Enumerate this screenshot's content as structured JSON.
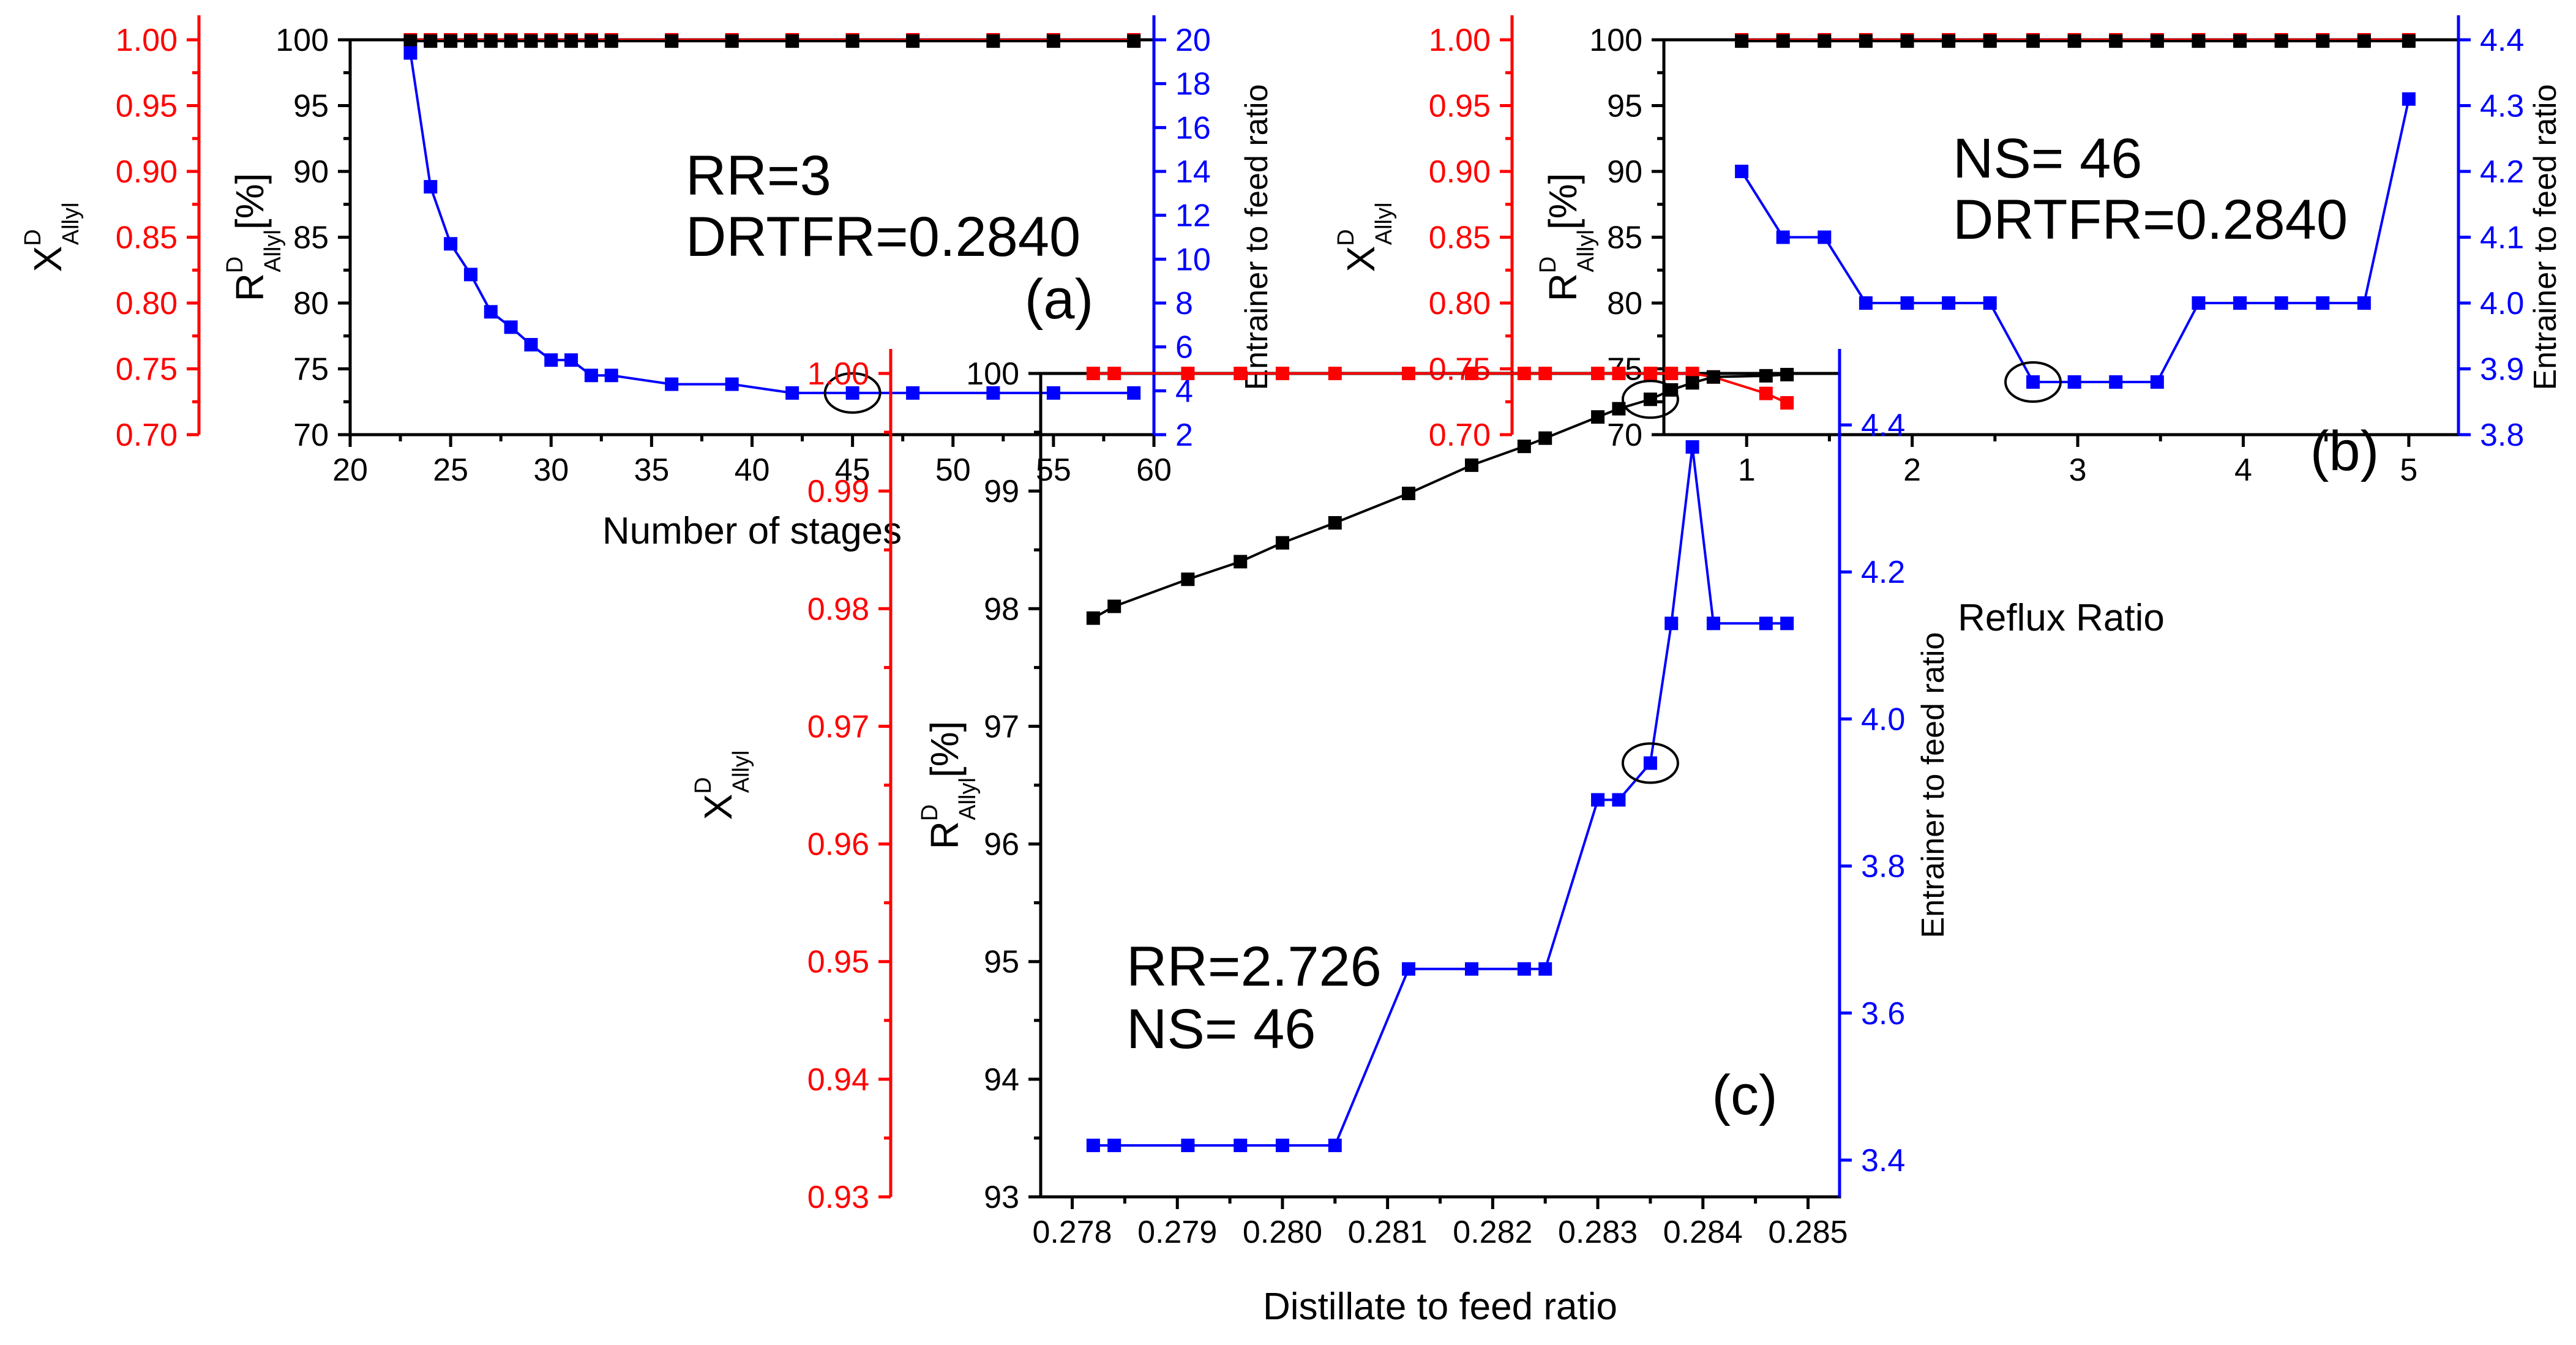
{
  "colors": {
    "black": "#000000",
    "red": "#ff0000",
    "blue": "#0000ff"
  },
  "chart_data": [
    {
      "type": "line",
      "panel_label": "(a)",
      "annotation": [
        "RR=3",
        "DRTFR=0.2840"
      ],
      "xlabel": "Number of stages",
      "xlim": [
        20,
        60
      ],
      "xticks": [
        "20",
        "25",
        "30",
        "35",
        "40",
        "45",
        "50",
        "55",
        "60"
      ],
      "y_red": {
        "base": "X",
        "sup": "D",
        "sub": "Allyl",
        "suffix": "",
        "lim": [
          0.7,
          1.0
        ],
        "ticks": [
          "0.70",
          "0.75",
          "0.80",
          "0.85",
          "0.90",
          "0.95",
          "1.00"
        ]
      },
      "y_black": {
        "base": "R",
        "sup": "D",
        "sub": "Allyl",
        "suffix": "[%]",
        "lim": [
          70,
          100
        ],
        "ticks": [
          "70",
          "75",
          "80",
          "85",
          "90",
          "95",
          "100"
        ]
      },
      "y_blue": {
        "label": "Entrainer to feed ratio",
        "lim": [
          2,
          20
        ],
        "ticks": [
          "2",
          "4",
          "6",
          "8",
          "10",
          "12",
          "14",
          "16",
          "18",
          "20"
        ]
      },
      "x": [
        23,
        24,
        25,
        26,
        27,
        28,
        29,
        30,
        31,
        32,
        33,
        36,
        39,
        42,
        45,
        48,
        52,
        55,
        59
      ],
      "series": [
        {
          "name": "X^D_Allyl",
          "axis": "red",
          "values": [
            1,
            1,
            1,
            1,
            1,
            1,
            1,
            1,
            1,
            1,
            1,
            1,
            1,
            1,
            1,
            1,
            1,
            1,
            1
          ]
        },
        {
          "name": "R^D_Allyl",
          "axis": "black",
          "values": [
            99.9,
            99.9,
            99.9,
            99.9,
            99.9,
            99.9,
            99.9,
            99.9,
            99.9,
            99.9,
            99.9,
            99.9,
            99.9,
            99.9,
            99.9,
            99.9,
            99.9,
            99.9,
            99.9
          ]
        },
        {
          "name": "Entrainer to feed ratio",
          "axis": "blue",
          "values": [
            19.4,
            13.3,
            10.7,
            9.3,
            7.6,
            6.9,
            6.1,
            5.4,
            5.4,
            4.7,
            4.7,
            4.3,
            4.3,
            3.9,
            3.9,
            3.9,
            3.9,
            3.9,
            3.9
          ]
        }
      ],
      "highlight_x": 45
    },
    {
      "type": "line",
      "panel_label": "(b)",
      "annotation": [
        "NS= 46",
        "DRTFR=0.2840"
      ],
      "xlabel": "Reflux Ratio",
      "xlim": [
        0.5,
        5.3
      ],
      "xticks": [
        "1",
        "2",
        "3",
        "4",
        "5"
      ],
      "y_red": {
        "base": "X",
        "sup": "D",
        "sub": "Allyl",
        "suffix": "",
        "lim": [
          0.7,
          1.0
        ],
        "ticks": [
          "0.70",
          "0.75",
          "0.80",
          "0.85",
          "0.90",
          "0.95",
          "1.00"
        ]
      },
      "y_black": {
        "base": "R",
        "sup": "D",
        "sub": "Allyl",
        "suffix": "[%]",
        "lim": [
          70,
          100
        ],
        "ticks": [
          "70",
          "75",
          "80",
          "85",
          "90",
          "95",
          "100"
        ]
      },
      "y_blue": {
        "label": "Entrainer to feed ratio",
        "lim": [
          3.8,
          4.4
        ],
        "ticks": [
          "3.8",
          "3.9",
          "4.0",
          "4.1",
          "4.2",
          "4.3",
          "4.4"
        ]
      },
      "x": [
        0.97,
        1.22,
        1.47,
        1.72,
        1.97,
        2.22,
        2.47,
        2.73,
        2.98,
        3.23,
        3.48,
        3.73,
        3.98,
        4.23,
        4.48,
        4.73,
        5.0
      ],
      "series": [
        {
          "name": "X^D_Allyl",
          "axis": "red",
          "values": [
            1,
            1,
            1,
            1,
            1,
            1,
            1,
            1,
            1,
            1,
            1,
            1,
            1,
            1,
            1,
            1,
            1
          ]
        },
        {
          "name": "R^D_Allyl",
          "axis": "black",
          "values": [
            99.9,
            99.9,
            99.9,
            99.9,
            99.9,
            99.9,
            99.9,
            99.9,
            99.9,
            99.9,
            99.9,
            99.9,
            99.9,
            99.9,
            99.9,
            99.9,
            99.9
          ]
        },
        {
          "name": "Entrainer to feed ratio",
          "axis": "blue",
          "values": [
            4.2,
            4.1,
            4.1,
            4.0,
            4.0,
            4.0,
            4.0,
            3.88,
            3.88,
            3.88,
            3.88,
            4.0,
            4.0,
            4.0,
            4.0,
            4.0,
            4.31
          ]
        }
      ],
      "highlight_x": 2.73
    },
    {
      "type": "line",
      "panel_label": "(c)",
      "annotation": [
        "RR=2.726",
        "NS= 46"
      ],
      "xlabel": "Distillate to feed ratio",
      "xlim": [
        0.2777,
        0.2853
      ],
      "xticks": [
        "0.278",
        "0.279",
        "0.280",
        "0.281",
        "0.282",
        "0.283",
        "0.284",
        "0.285"
      ],
      "y_red": {
        "base": "X",
        "sup": "D",
        "sub": "Allyl",
        "suffix": "",
        "lim": [
          0.93,
          1.0
        ],
        "ticks": [
          "0.93",
          "0.94",
          "0.95",
          "0.96",
          "0.97",
          "0.98",
          "0.99",
          "1.00"
        ]
      },
      "y_black": {
        "base": "R",
        "sup": "D",
        "sub": "Allyl",
        "suffix": "[%]",
        "lim": [
          93,
          100
        ],
        "ticks": [
          "93",
          "94",
          "95",
          "96",
          "97",
          "98",
          "99",
          "100"
        ]
      },
      "y_blue": {
        "label": "Entrainer to feed ratio",
        "lim": [
          3.35,
          4.47
        ],
        "ticks": [
          "3.4",
          "3.6",
          "3.8",
          "4.0",
          "4.2",
          "4.4"
        ]
      },
      "x": [
        0.2782,
        0.2784,
        0.2791,
        0.2796,
        0.28,
        0.2805,
        0.2812,
        0.2818,
        0.2823,
        0.2825,
        0.283,
        0.2832,
        0.2835,
        0.2837,
        0.2839,
        0.2841,
        0.2846,
        0.2848
      ],
      "series": [
        {
          "name": "X^D_Allyl",
          "axis": "red",
          "values": [
            1,
            1,
            1,
            1,
            1,
            1,
            1,
            1,
            1,
            1,
            1,
            1,
            1,
            1,
            1,
            0.9997,
            0.9983,
            0.9975
          ]
        },
        {
          "name": "R^D_Allyl",
          "axis": "black",
          "values": [
            97.92,
            98.02,
            98.25,
            98.4,
            98.56,
            98.73,
            98.98,
            99.22,
            99.38,
            99.45,
            99.63,
            99.7,
            99.78,
            99.86,
            99.92,
            99.97,
            99.98,
            99.99
          ]
        },
        {
          "name": "Entrainer to feed ratio",
          "axis": "blue",
          "values": [
            3.42,
            3.42,
            3.42,
            3.42,
            3.42,
            3.42,
            3.66,
            3.66,
            3.66,
            3.66,
            3.89,
            3.89,
            3.94,
            4.13,
            4.37,
            4.13,
            4.13,
            4.13
          ]
        }
      ],
      "highlight_x": 0.2835
    }
  ]
}
